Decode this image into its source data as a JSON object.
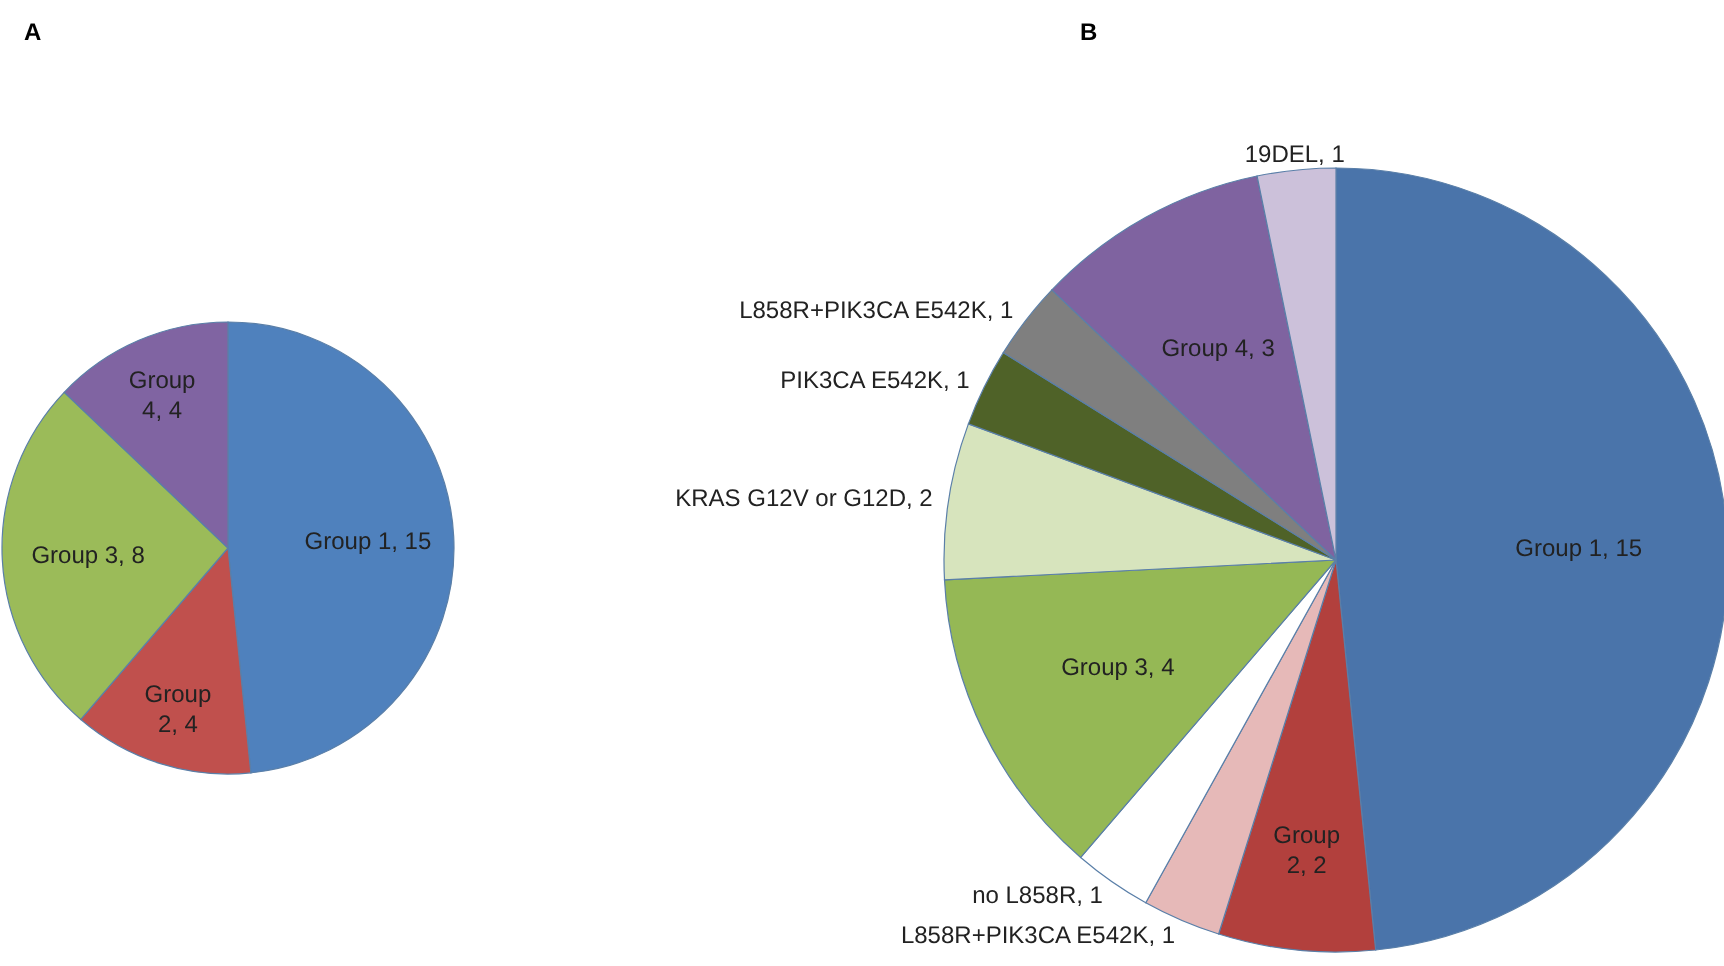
{
  "chart_data": [
    {
      "type": "pie",
      "title": "A",
      "categories": [
        "Group 1",
        "Group 2",
        "Group 3",
        "Group 4"
      ],
      "values": [
        15,
        4,
        8,
        4
      ],
      "value_labels": [
        ", 15",
        ", 4",
        ", 8",
        ", 4"
      ],
      "colors": [
        "#4f81bd",
        "#c0504d",
        "#9bbb59",
        "#8064a2"
      ]
    },
    {
      "type": "pie",
      "title": "B",
      "categories": [
        "Group 1",
        "Group 2",
        "L858R+PIK3CA E542K",
        "no L858R",
        "Group 3",
        "KRAS G12V or G12D",
        "PIK3CA E542K",
        "L858R+PIK3CA E542K",
        "Group 4",
        "19DEL"
      ],
      "values": [
        15,
        2,
        1,
        1,
        4,
        2,
        1,
        1,
        3,
        1
      ],
      "value_labels": [
        ", 15",
        ", 2",
        ", 1",
        ", 1",
        ", 4",
        ", 2",
        ", 1",
        ", 1",
        ", 3",
        ", 1"
      ],
      "colors": [
        "#4a74aa",
        "#b2403d",
        "#e6b9b8",
        "#ffffff",
        "#95b855",
        "#d7e4bd",
        "#4f6228",
        "#7f7f7f",
        "#7f63a0",
        "#ccc1da"
      ]
    }
  ]
}
